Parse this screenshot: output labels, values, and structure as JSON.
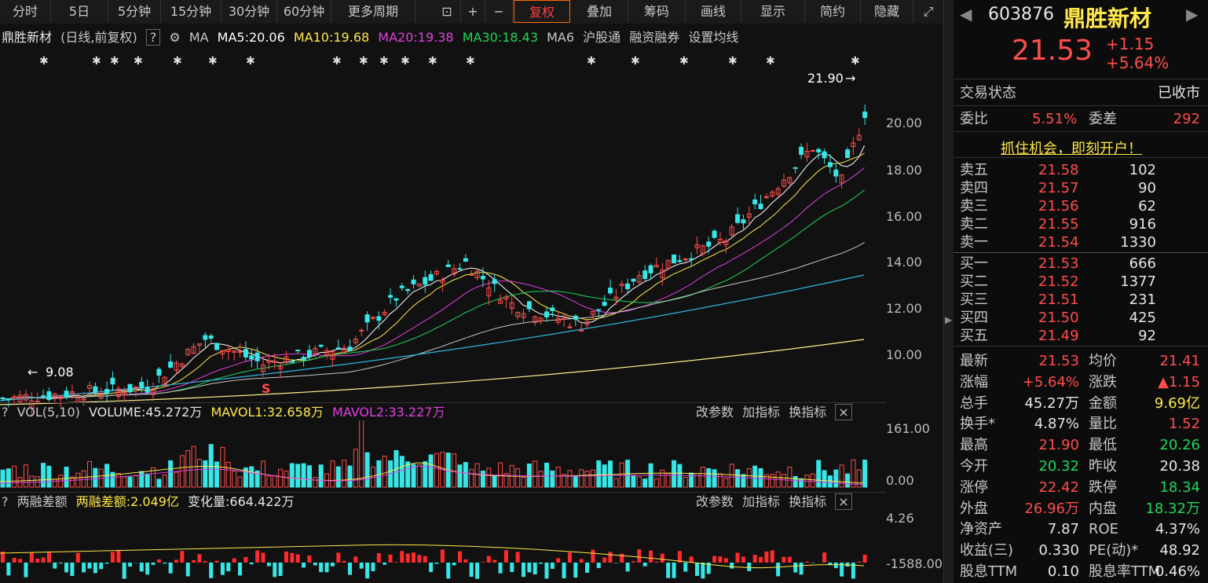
{
  "toolbar": {
    "items": [
      "分时",
      "5日",
      "5分钟",
      "15分钟",
      "30分钟",
      "60分钟",
      "更多周期",
      "复权",
      "叠加",
      "筹码",
      "画线",
      "显示",
      "简约",
      "隐藏"
    ]
  },
  "main": {
    "stock_name": "鼎胜新材",
    "mode": "(日线,前复权)",
    "help": "?",
    "ma_label": "MA",
    "ma": [
      {
        "label": "MA5:20.06",
        "color": "#ffffff"
      },
      {
        "label": "MA10:19.68",
        "color": "#ffe84a"
      },
      {
        "label": "MA20:19.38",
        "color": "#e040e0"
      },
      {
        "label": "MA30:18.43",
        "color": "#21d65a"
      },
      {
        "label": "MA6",
        "color": "#c8c8c8"
      }
    ],
    "links": [
      "沪股通",
      "融资融券",
      "设置均线"
    ],
    "y_ticks": [
      "20.00",
      "18.00",
      "16.00",
      "14.00",
      "12.00",
      "10.00"
    ],
    "high_label": "21.90",
    "low_label": "9.08",
    "s_marker": "S"
  },
  "vol": {
    "title": "VOL(5,10)",
    "volume": "VOLUME:45.272万",
    "mavol1": "MAVOL1:32.658万",
    "mavol2": "MAVOL2:33.227万",
    "btns": [
      "改参数",
      "加指标",
      "换指标"
    ],
    "y_ticks": [
      "161.00",
      "0.00"
    ]
  },
  "margin": {
    "title": "两融差额",
    "value": "两融差额:2.049亿",
    "change": "变化量:664.422万",
    "btns": [
      "改参数",
      "加指标",
      "换指标"
    ],
    "y_ticks": [
      "4.26",
      "-1588.00"
    ]
  },
  "quote": {
    "code": "603876",
    "name": "鼎胜新材",
    "price": "21.53",
    "chg": "+1.15",
    "pct": "+5.64%",
    "status_label": "交易状态",
    "status": "已收市",
    "wb_label": "委比",
    "wb": "5.51%",
    "wc_label": "委差",
    "wc": "292",
    "promo": "抓住机会，即刻开户！",
    "asks": [
      {
        "l": "卖五",
        "p": "21.58",
        "v": "102"
      },
      {
        "l": "卖四",
        "p": "21.57",
        "v": "90"
      },
      {
        "l": "卖三",
        "p": "21.56",
        "v": "62"
      },
      {
        "l": "卖二",
        "p": "21.55",
        "v": "916"
      },
      {
        "l": "卖一",
        "p": "21.54",
        "v": "1330"
      }
    ],
    "bids": [
      {
        "l": "买一",
        "p": "21.53",
        "v": "666"
      },
      {
        "l": "买二",
        "p": "21.52",
        "v": "1377"
      },
      {
        "l": "买三",
        "p": "21.51",
        "v": "231"
      },
      {
        "l": "买四",
        "p": "21.50",
        "v": "425"
      },
      {
        "l": "买五",
        "p": "21.49",
        "v": "92"
      }
    ],
    "stats": [
      [
        "最新",
        "21.53",
        "red",
        "均价",
        "21.41",
        "red"
      ],
      [
        "涨幅",
        "+5.64%",
        "red",
        "涨跌",
        "▲1.15",
        "red"
      ],
      [
        "总手",
        "45.27万",
        "wht",
        "金额",
        "9.69亿",
        "yel"
      ],
      [
        "换手*",
        "4.87%",
        "wht",
        "量比",
        "1.52",
        "red"
      ],
      [
        "最高",
        "21.90",
        "red",
        "最低",
        "20.26",
        "grn"
      ],
      [
        "今开",
        "20.32",
        "grn",
        "昨收",
        "20.38",
        "wht"
      ],
      [
        "涨停",
        "22.42",
        "red",
        "跌停",
        "18.34",
        "grn"
      ],
      [
        "外盘",
        "26.96万",
        "red",
        "内盘",
        "18.32万",
        "grn"
      ],
      [
        "净资产",
        "7.87",
        "wht",
        "ROE",
        "4.37%",
        "wht"
      ],
      [
        "收益(三)",
        "0.330",
        "wht",
        "PE(动)*",
        "48.92",
        "wht"
      ],
      [
        "股息TTM",
        "0.10",
        "wht",
        "股息率TTM",
        "0.46%",
        "wht"
      ]
    ]
  }
}
